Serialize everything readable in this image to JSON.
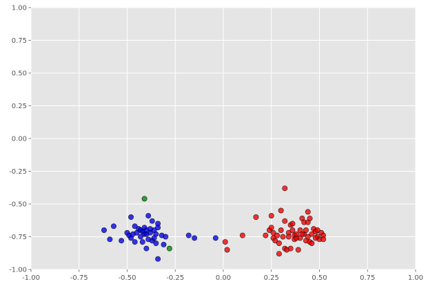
{
  "chart_data": {
    "type": "scatter",
    "title": "",
    "xlabel": "",
    "ylabel": "",
    "xlim": [
      -1.0,
      1.0
    ],
    "ylim": [
      -1.0,
      1.0
    ],
    "xticks": [
      "-1.00",
      "-0.75",
      "-0.50",
      "-0.25",
      "0.00",
      "0.25",
      "0.50",
      "0.75",
      "1.00"
    ],
    "yticks": [
      "1.00",
      "0.75",
      "0.50",
      "0.25",
      "0.00",
      "-0.25",
      "-0.50",
      "-0.75",
      "-1.00"
    ],
    "grid": true,
    "style": {
      "background": "#e5e5e5",
      "grid_color": "#ffffff",
      "edge_color": "#000000"
    },
    "series": [
      {
        "color": "#0000ee",
        "points": [
          [
            -0.62,
            -0.7
          ],
          [
            -0.57,
            -0.67
          ],
          [
            -0.59,
            -0.77
          ],
          [
            -0.53,
            -0.78
          ],
          [
            -0.48,
            -0.6
          ],
          [
            -0.5,
            -0.72
          ],
          [
            -0.49,
            -0.74
          ],
          [
            -0.48,
            -0.76
          ],
          [
            -0.47,
            -0.73
          ],
          [
            -0.46,
            -0.67
          ],
          [
            -0.46,
            -0.79
          ],
          [
            -0.45,
            -0.72
          ],
          [
            -0.44,
            -0.69
          ],
          [
            -0.43,
            -0.75
          ],
          [
            -0.43,
            -0.7
          ],
          [
            -0.42,
            -0.71
          ],
          [
            -0.42,
            -0.79
          ],
          [
            -0.41,
            -0.68
          ],
          [
            -0.41,
            -0.73
          ],
          [
            -0.4,
            -0.7
          ],
          [
            -0.4,
            -0.84
          ],
          [
            -0.39,
            -0.59
          ],
          [
            -0.39,
            -0.77
          ],
          [
            -0.38,
            -0.69
          ],
          [
            -0.38,
            -0.72
          ],
          [
            -0.37,
            -0.63
          ],
          [
            -0.37,
            -0.78
          ],
          [
            -0.36,
            -0.7
          ],
          [
            -0.35,
            -0.73
          ],
          [
            -0.35,
            -0.8
          ],
          [
            -0.34,
            -0.65
          ],
          [
            -0.34,
            -0.68
          ],
          [
            -0.34,
            -0.92
          ],
          [
            -0.32,
            -0.74
          ],
          [
            -0.31,
            -0.81
          ],
          [
            -0.3,
            -0.75
          ],
          [
            -0.18,
            -0.74
          ],
          [
            -0.15,
            -0.76
          ],
          [
            -0.04,
            -0.76
          ],
          [
            -0.4,
            -0.73
          ],
          [
            -0.36,
            -0.76
          ]
        ]
      },
      {
        "color": "#ee0000",
        "points": [
          [
            0.01,
            -0.79
          ],
          [
            0.02,
            -0.85
          ],
          [
            0.1,
            -0.74
          ],
          [
            0.17,
            -0.6
          ],
          [
            0.22,
            -0.74
          ],
          [
            0.24,
            -0.7
          ],
          [
            0.25,
            -0.59
          ],
          [
            0.25,
            -0.68
          ],
          [
            0.26,
            -0.72
          ],
          [
            0.26,
            -0.76
          ],
          [
            0.27,
            -0.78
          ],
          [
            0.28,
            -0.74
          ],
          [
            0.29,
            -0.8
          ],
          [
            0.29,
            -0.88
          ],
          [
            0.3,
            -0.55
          ],
          [
            0.3,
            -0.7
          ],
          [
            0.31,
            -0.75
          ],
          [
            0.32,
            -0.38
          ],
          [
            0.32,
            -0.63
          ],
          [
            0.32,
            -0.84
          ],
          [
            0.33,
            -0.85
          ],
          [
            0.34,
            -0.72
          ],
          [
            0.34,
            -0.75
          ],
          [
            0.35,
            -0.66
          ],
          [
            0.35,
            -0.84
          ],
          [
            0.36,
            -0.65
          ],
          [
            0.36,
            -0.7
          ],
          [
            0.37,
            -0.74
          ],
          [
            0.37,
            -0.77
          ],
          [
            0.38,
            -0.76
          ],
          [
            0.39,
            -0.85
          ],
          [
            0.4,
            -0.7
          ],
          [
            0.4,
            -0.76
          ],
          [
            0.41,
            -0.61
          ],
          [
            0.42,
            -0.64
          ],
          [
            0.42,
            -0.73
          ],
          [
            0.43,
            -0.7
          ],
          [
            0.43,
            -0.78
          ],
          [
            0.44,
            -0.56
          ],
          [
            0.44,
            -0.64
          ],
          [
            0.44,
            -0.75
          ],
          [
            0.45,
            -0.61
          ],
          [
            0.45,
            -0.79
          ],
          [
            0.46,
            -0.73
          ],
          [
            0.46,
            -0.8
          ],
          [
            0.47,
            -0.69
          ],
          [
            0.48,
            -0.71
          ],
          [
            0.49,
            -0.7
          ],
          [
            0.49,
            -0.75
          ],
          [
            0.5,
            -0.77
          ],
          [
            0.51,
            -0.72
          ],
          [
            0.52,
            -0.74
          ],
          [
            0.52,
            -0.77
          ],
          [
            0.38,
            -0.73
          ],
          [
            0.41,
            -0.73
          ],
          [
            0.48,
            -0.76
          ]
        ]
      },
      {
        "color": "#008800",
        "points": [
          [
            -0.41,
            -0.46
          ],
          [
            -0.28,
            -0.84
          ]
        ]
      }
    ]
  }
}
